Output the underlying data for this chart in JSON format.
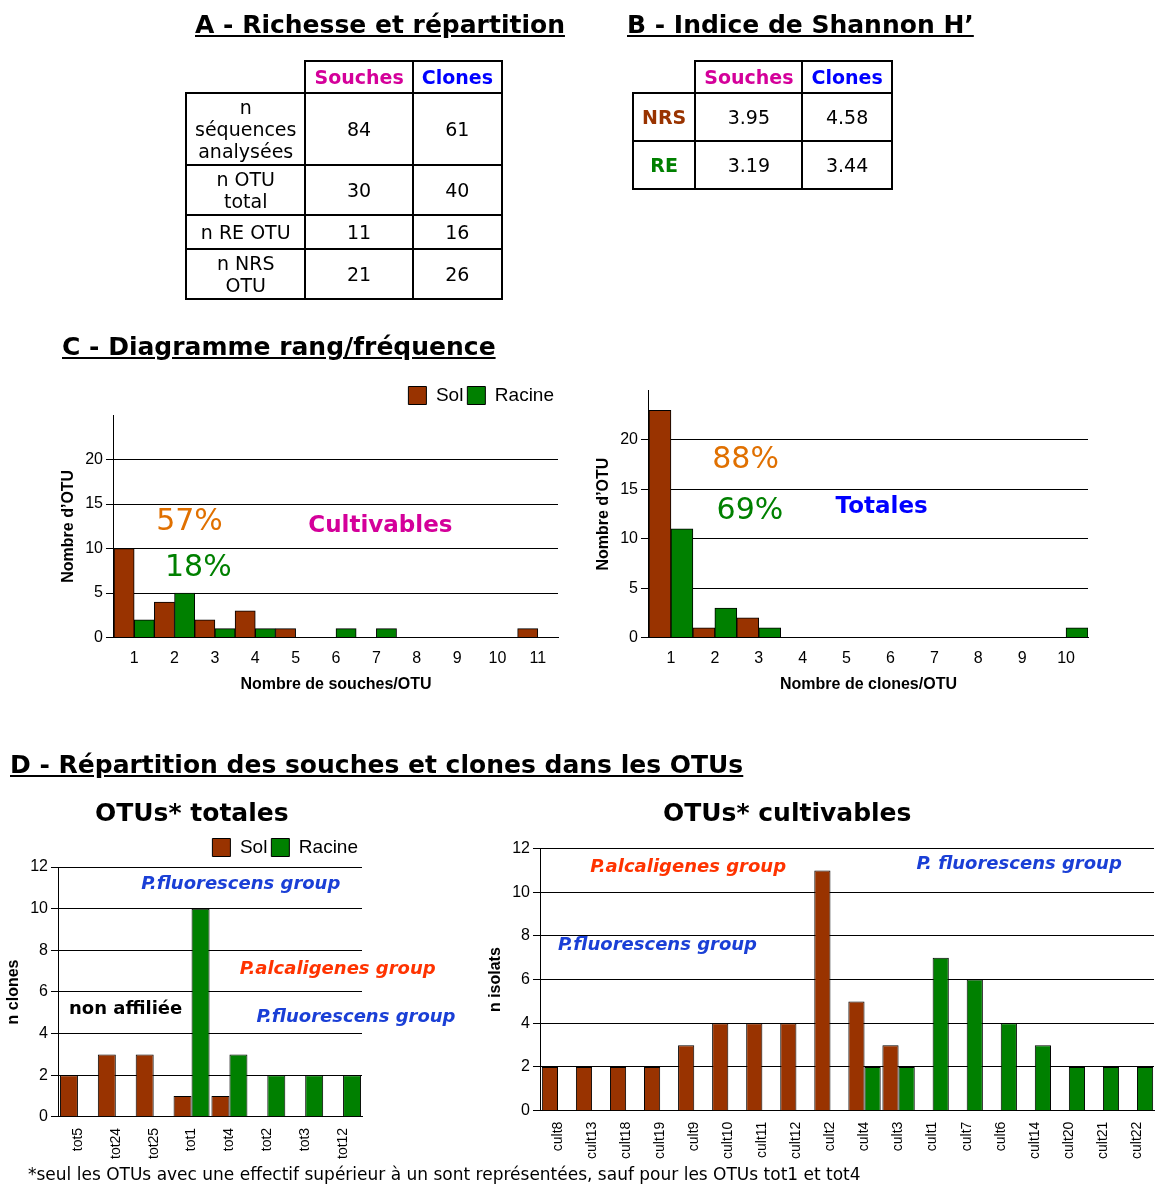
{
  "chart_data": [
    {
      "type": "heatmap",
      "title": "A - Richesse et répartition",
      "categories": [
        "Souches",
        "Clones"
      ],
      "y_categories": [
        "n séquences analysées",
        "n OTU total",
        "n RE OTU",
        "n NRS OTU"
      ],
      "cells": [
        [
          84,
          61
        ],
        [
          30,
          40
        ],
        [
          11,
          16
        ],
        [
          21,
          26
        ]
      ],
      "data_labels": true
    },
    {
      "type": "heatmap",
      "title": "B - Indice de Shannon H’",
      "categories": [
        "Souches",
        "Clones"
      ],
      "y_categories": [
        "NRS",
        "RE"
      ],
      "cells": [
        [
          3.95,
          4.58
        ],
        [
          3.19,
          3.44
        ]
      ],
      "data_labels": true
    },
    {
      "type": "bar",
      "title": "C - Diagramme rang/fréquence",
      "xlabel": "Nombre de souches/OTU",
      "ylabel": "Nombre d’OTU",
      "categories": [
        "1",
        "2",
        "3",
        "4",
        "5",
        "6",
        "7",
        "8",
        "9",
        "10",
        "11"
      ],
      "series": [
        {
          "name": "Sol",
          "color": "#993300",
          "values": [
            10,
            4,
            2,
            3,
            1,
            0,
            0,
            0,
            0,
            0,
            1
          ]
        },
        {
          "name": "Racine",
          "color": "#008000",
          "values": [
            2,
            5,
            1,
            1,
            0,
            1,
            1,
            0,
            0,
            0,
            0
          ]
        }
      ],
      "ylim": [
        0,
        25
      ],
      "yticks": [
        0,
        5,
        10,
        15,
        20
      ],
      "grid": "y",
      "legend": "top right",
      "annotations": [
        "57%",
        "18%",
        "Cultivables"
      ]
    },
    {
      "type": "bar",
      "xlabel": "Nombre de clones/OTU",
      "ylabel": "Nombre d’OTU",
      "categories": [
        "1",
        "2",
        "3",
        "4",
        "5",
        "6",
        "7",
        "8",
        "9",
        "10"
      ],
      "series": [
        {
          "color": "#993300",
          "values": [
            23,
            1,
            2,
            0,
            0,
            0,
            0,
            0,
            0,
            0
          ]
        },
        {
          "color": "#008000",
          "values": [
            11,
            3,
            1,
            0,
            0,
            0,
            0,
            0,
            0,
            1
          ]
        }
      ],
      "ylim": [
        0,
        25
      ],
      "yticks": [
        0,
        5,
        10,
        15,
        20
      ],
      "grid": "y",
      "annotations": [
        "88%",
        "69%",
        "Totales"
      ]
    },
    {
      "type": "bar",
      "title": "D - Répartition des souches et clones dans les OTUs",
      "subtitle": "OTUs* totales",
      "ylabel": "n clones",
      "categories": [
        "tot5",
        "tot24",
        "tot25",
        "tot1",
        "tot4",
        "tot2",
        "tot3",
        "tot12"
      ],
      "series": [
        {
          "name": "Sol",
          "color": "#993300",
          "values": [
            2,
            3,
            3,
            1,
            1,
            0,
            0,
            0
          ]
        },
        {
          "name": "Racine",
          "color": "#008000",
          "values": [
            0,
            0,
            0,
            10,
            3,
            2,
            2,
            2
          ]
        }
      ],
      "ylim": [
        0,
        12
      ],
      "yticks": [
        0,
        2,
        4,
        6,
        8,
        10,
        12
      ],
      "grid": "y",
      "legend": "top right",
      "annotations": [
        "P.fluorescens group",
        "P.alcaligenes group",
        "P.fluorescens group",
        "non affiliée"
      ]
    },
    {
      "type": "bar",
      "title": "OTUs* cultivables",
      "ylabel": "n isolats",
      "categories": [
        "cult8",
        "cult13",
        "cult18",
        "cult19",
        "cult9",
        "cult10",
        "cult11",
        "cult12",
        "cult2",
        "cult4",
        "cult3",
        "cult1",
        "cult7",
        "cult6",
        "cult14",
        "cult20",
        "cult21",
        "cult22"
      ],
      "series": [
        {
          "color": "#993300",
          "values": [
            2,
            2,
            2,
            2,
            3,
            4,
            4,
            4,
            11,
            5,
            3,
            0,
            0,
            0,
            0,
            0,
            0,
            0
          ]
        },
        {
          "color": "#008000",
          "values": [
            0,
            0,
            0,
            0,
            0,
            0,
            0,
            0,
            0,
            2,
            2,
            7,
            6,
            4,
            3,
            2,
            2,
            2
          ]
        }
      ],
      "ylim": [
        0,
        12
      ],
      "yticks": [
        0,
        2,
        4,
        6,
        8,
        10,
        12
      ],
      "grid": "y",
      "annotations": [
        "P.alcaligenes group",
        "P. fluorescens group",
        "P.fluorescens group",
        "*seul les  OTUs avec une effectif supérieur à un sont représentées, sauf pour les OTUs tot1 et tot4"
      ]
    }
  ]
}
